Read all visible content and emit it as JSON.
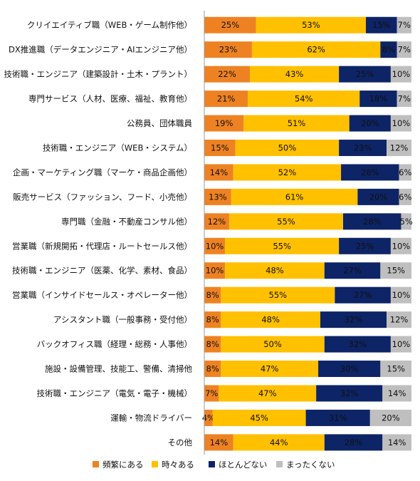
{
  "chart_data": {
    "type": "bar",
    "orientation": "horizontal",
    "stacked": "percent",
    "categories": [
      "クリイエイティブ職（WEB・ゲーム制作他）",
      "DX推進職（データエンジニア・AIエンジニア他）",
      "技術職・エンジニア（建築設計・土木・プラント）",
      "専門サービス（人材、医療、福祉、教育他）",
      "公務員、団体職員",
      "技術職・エンジニア（WEB・システム）",
      "企画・マーケティング職（マーケ・商品企画他）",
      "販売サービス（ファッション、フード、小売他）",
      "専門職（金融・不動産コンサル他）",
      "営業職（新規開拓・代理店・ルートセールス他）",
      "技術職・エンジニア（医薬、化学、素材、食品）",
      "営業職（インサイドセールス・オペレーター他）",
      "アシスタント職（一般事務・受付他）",
      "バックオフィス職（経理・総務・人事他）",
      "施設・設備管理、技能工、警備、清掃他",
      "技術職・エンジニア（電気・電子・機械）",
      "運輸・物流ドライバー",
      "その他"
    ],
    "series": [
      {
        "name": "頻繁にある",
        "color": "#EE8222",
        "values": [
          25,
          23,
          22,
          21,
          19,
          15,
          14,
          13,
          12,
          10,
          10,
          8,
          8,
          8,
          8,
          7,
          4,
          14
        ]
      },
      {
        "name": "時々ある",
        "color": "#FFC000",
        "values": [
          53,
          62,
          43,
          54,
          51,
          50,
          52,
          61,
          55,
          55,
          48,
          55,
          48,
          50,
          47,
          47,
          45,
          44
        ]
      },
      {
        "name": "ほとんどない",
        "color": "#0D2466",
        "values": [
          15,
          8,
          25,
          18,
          20,
          23,
          28,
          20,
          28,
          25,
          27,
          27,
          32,
          32,
          30,
          32,
          31,
          28
        ]
      },
      {
        "name": "まったくない",
        "color": "#BFBFBF",
        "values": [
          7,
          7,
          10,
          7,
          10,
          12,
          6,
          6,
          5,
          10,
          15,
          10,
          12,
          10,
          15,
          14,
          20,
          14
        ]
      }
    ],
    "value_suffix": "%",
    "xlim": [
      0,
      100
    ],
    "grid": false,
    "legend_position": "bottom"
  }
}
